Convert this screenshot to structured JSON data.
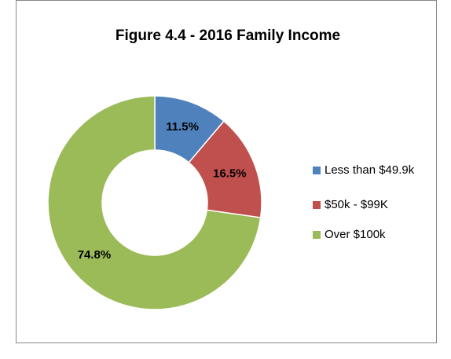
{
  "chart_data": {
    "type": "donut",
    "title": "Figure 4.4 - 2016 Family Income",
    "categories": [
      "Less than $49.9k",
      "$50k - $99K",
      "Over $100k"
    ],
    "values": [
      11.5,
      16.5,
      74.8
    ],
    "value_labels": [
      "11.5%",
      "16.5%",
      "74.8%"
    ],
    "colors": [
      "#4f81bd",
      "#c0504d",
      "#9bbb59"
    ],
    "legend": "right"
  }
}
